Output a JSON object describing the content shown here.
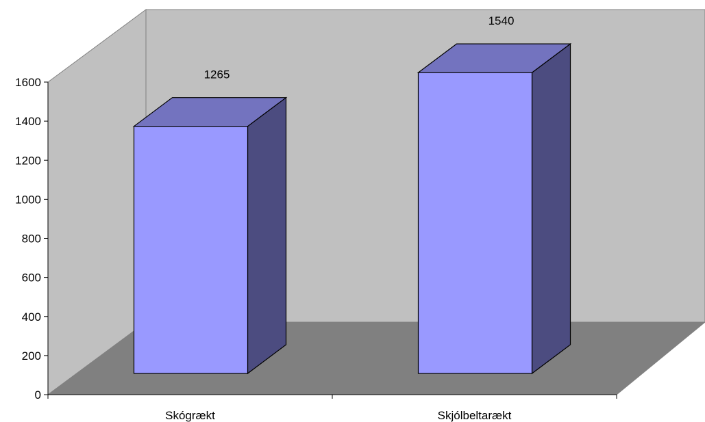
{
  "chart_data": {
    "type": "bar",
    "categories": [
      "Skógrækt",
      "Skjólbeltarækt"
    ],
    "values": [
      1265,
      1540
    ],
    "data_labels": [
      "1265",
      "1540"
    ],
    "yticks": [
      "0",
      "200",
      "400",
      "600",
      "800",
      "1000",
      "1200",
      "1400",
      "1600"
    ],
    "ylim": [
      0,
      1600
    ],
    "grid": false,
    "legend": "none",
    "style": "3d-column",
    "colors": {
      "bar_front": "#9999ff",
      "bar_top": "#7373bf",
      "bar_side": "#4c4c80",
      "back_wall": "#c0c0c0",
      "side_wall": "#c0c0c0",
      "floor": "#808080",
      "outline": "#000000"
    }
  }
}
